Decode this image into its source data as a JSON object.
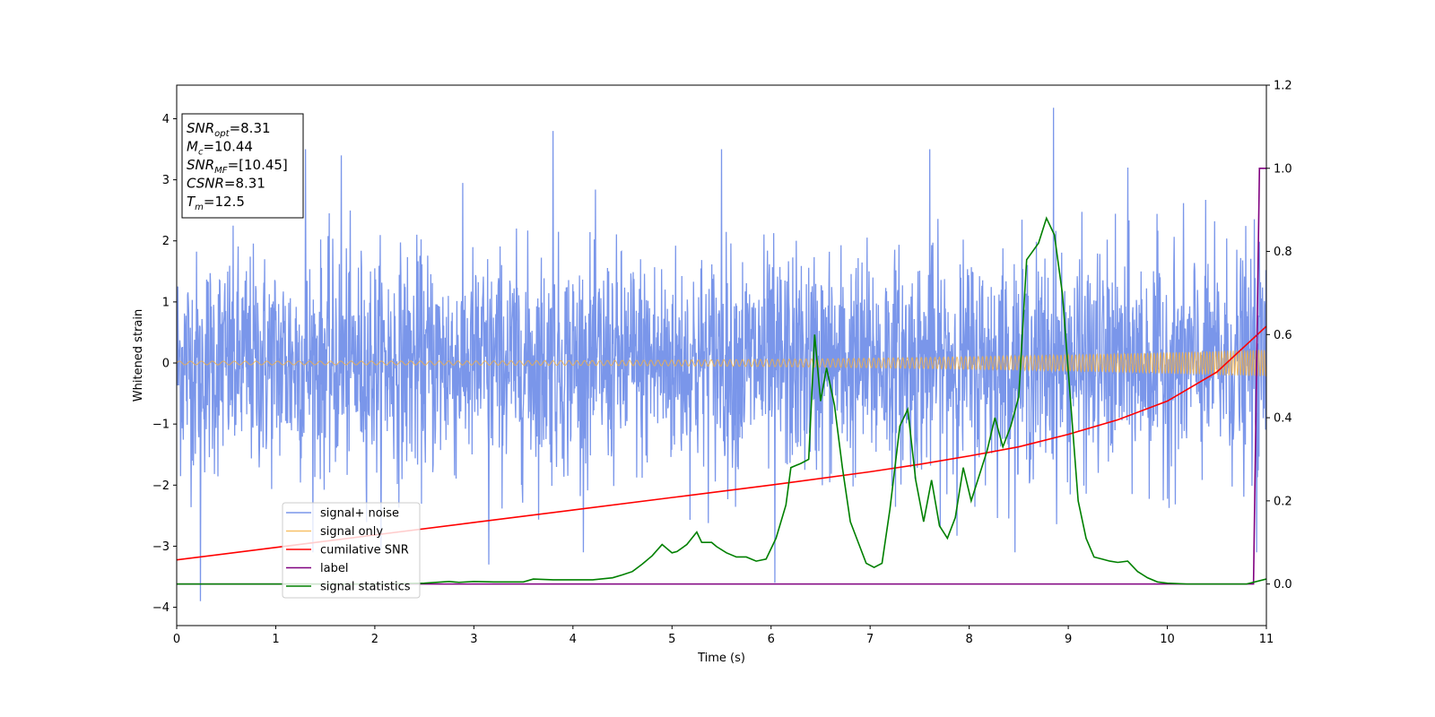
{
  "chart_data": {
    "type": "line",
    "title": "",
    "xlabel": "Time (s)",
    "ylabel": "Whitened strain",
    "xlim": [
      0,
      11
    ],
    "ylim": [
      -4.3,
      4.55
    ],
    "y2lim": [
      -0.1,
      1.2
    ],
    "xticks": [
      0,
      1,
      2,
      3,
      4,
      5,
      6,
      7,
      8,
      9,
      10,
      11
    ],
    "yticks": [
      -4,
      -3,
      -2,
      -1,
      0,
      1,
      2,
      3,
      4
    ],
    "y2ticks": [
      "0.0",
      "0.2",
      "0.4",
      "0.6",
      "0.8",
      "1.0",
      "1.2"
    ],
    "grid": false,
    "legend_position": "lower-left",
    "annotation": {
      "lines": [
        {
          "base": "SNR",
          "sub": "opt",
          "value": "=8.31"
        },
        {
          "base": "M",
          "sub": "c",
          "value": "=10.44"
        },
        {
          "base": "SNR",
          "sub": "MF",
          "value": "=[10.45]"
        },
        {
          "base": "CSNR",
          "sub": "",
          "value": "=8.31"
        },
        {
          "base": "T",
          "sub": "m",
          "value": "=12.5"
        }
      ]
    },
    "series": [
      {
        "name": "signal+ noise",
        "color": "#4169e1",
        "axis": "left",
        "kind": "noise",
        "std": 0.9,
        "peaks": [
          {
            "x": 0.24,
            "y": -3.9
          },
          {
            "x": 1.66,
            "y": 3.4
          },
          {
            "x": 3.8,
            "y": 3.8
          },
          {
            "x": 5.5,
            "y": 3.5
          },
          {
            "x": 6.04,
            "y": -3.6
          },
          {
            "x": 8.85,
            "y": 4.18
          },
          {
            "x": 1.3,
            "y": 3.5
          },
          {
            "x": 3.15,
            "y": -3.3
          },
          {
            "x": 10.9,
            "y": -3.1
          },
          {
            "x": 7.6,
            "y": 3.5
          },
          {
            "x": 9.6,
            "y": 3.2
          }
        ]
      },
      {
        "name": "signal only",
        "color": "#f5b041",
        "axis": "left",
        "kind": "chirp",
        "amplitude_start": 0.03,
        "amplitude_end": 0.22
      },
      {
        "name": "cumilative SNR",
        "color": "#ff0000",
        "axis": "right",
        "x": [
          0,
          1,
          2,
          3,
          4,
          5,
          6,
          7,
          7.5,
          8,
          8.5,
          9,
          9.5,
          10,
          10.5,
          11
        ],
        "values": [
          0.058,
          0.088,
          0.118,
          0.148,
          0.178,
          0.208,
          0.238,
          0.27,
          0.288,
          0.308,
          0.33,
          0.36,
          0.395,
          0.44,
          0.51,
          0.62
        ]
      },
      {
        "name": "label",
        "color": "#800080",
        "axis": "right",
        "x": [
          0,
          10.87,
          10.93,
          11
        ],
        "values": [
          0,
          0,
          1,
          1
        ]
      },
      {
        "name": "signal statistics",
        "color": "#008000",
        "axis": "right",
        "x": [
          0,
          0.5,
          1,
          1.5,
          2,
          2.5,
          2.75,
          2.85,
          3,
          3.2,
          3.5,
          3.6,
          3.8,
          4,
          4.2,
          4.4,
          4.5,
          4.6,
          4.7,
          4.8,
          4.9,
          5,
          5.05,
          5.15,
          5.25,
          5.3,
          5.4,
          5.45,
          5.55,
          5.65,
          5.75,
          5.85,
          5.95,
          6.05,
          6.15,
          6.2,
          6.3,
          6.38,
          6.44,
          6.5,
          6.56,
          6.64,
          6.72,
          6.8,
          6.88,
          6.96,
          7.04,
          7.12,
          7.2,
          7.3,
          7.38,
          7.46,
          7.54,
          7.62,
          7.7,
          7.78,
          7.86,
          7.94,
          8.02,
          8.1,
          8.18,
          8.26,
          8.34,
          8.42,
          8.5,
          8.58,
          8.64,
          8.7,
          8.78,
          8.86,
          8.94,
          9.02,
          9.1,
          9.18,
          9.26,
          9.34,
          9.42,
          9.5,
          9.6,
          9.7,
          9.8,
          9.9,
          10,
          10.2,
          10.4,
          10.6,
          10.8,
          11
        ],
        "values": [
          0,
          0,
          0,
          0,
          0,
          0.002,
          0.006,
          0.004,
          0.006,
          0.005,
          0.005,
          0.012,
          0.01,
          0.01,
          0.01,
          0.015,
          0.022,
          0.03,
          0.048,
          0.068,
          0.095,
          0.075,
          0.078,
          0.095,
          0.125,
          0.1,
          0.1,
          0.09,
          0.075,
          0.065,
          0.065,
          0.055,
          0.06,
          0.11,
          0.19,
          0.28,
          0.29,
          0.3,
          0.6,
          0.44,
          0.52,
          0.43,
          0.28,
          0.15,
          0.1,
          0.05,
          0.04,
          0.05,
          0.18,
          0.38,
          0.42,
          0.25,
          0.15,
          0.25,
          0.14,
          0.11,
          0.16,
          0.28,
          0.2,
          0.26,
          0.32,
          0.4,
          0.33,
          0.38,
          0.45,
          0.78,
          0.8,
          0.82,
          0.88,
          0.84,
          0.7,
          0.45,
          0.2,
          0.11,
          0.065,
          0.06,
          0.055,
          0.052,
          0.055,
          0.03,
          0.015,
          0.005,
          0.002,
          0,
          0,
          0,
          0,
          0.012
        ]
      }
    ]
  }
}
